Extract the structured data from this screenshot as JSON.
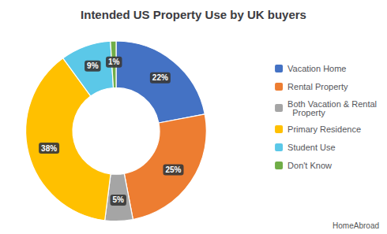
{
  "chart_data": {
    "type": "pie",
    "title": "Intended US Property Use by UK buyers",
    "categories": [
      "Vacation Home",
      "Rental Property",
      "Both Vacation & Rental\n  Property",
      "Primary Residence",
      "Student Use",
      "Don't Know"
    ],
    "values": [
      22,
      25,
      5,
      38,
      9,
      1
    ],
    "value_labels": [
      "22%",
      "25%",
      "5%",
      "38%",
      "9%",
      "1%"
    ],
    "colors": [
      "#4472c4",
      "#ed7d31",
      "#a5a5a5",
      "#ffc000",
      "#5bc8e8",
      "#70ad47"
    ],
    "data_labels": true,
    "legend": "right",
    "annotations": [
      "HomeAbroad"
    ]
  }
}
